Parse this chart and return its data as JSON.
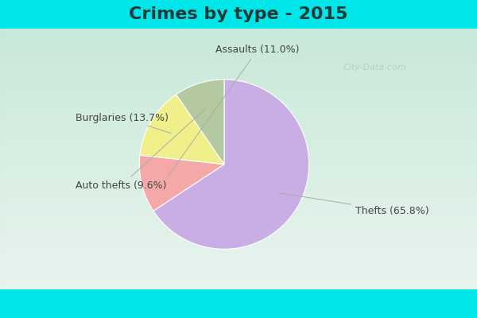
{
  "title": "Crimes by type - 2015",
  "slices": [
    {
      "label": "Thefts",
      "pct": 65.8,
      "color": "#c9aee5"
    },
    {
      "label": "Assaults",
      "pct": 11.0,
      "color": "#f4a9a8"
    },
    {
      "label": "Burglaries",
      "pct": 13.7,
      "color": "#f0f08a"
    },
    {
      "label": "Auto thefts",
      "pct": 9.6,
      "color": "#b5c9a0"
    }
  ],
  "bg_cyan": "#00e5e8",
  "bg_grad_top": "#c8e8d8",
  "bg_grad_bottom": "#e8f4ee",
  "title_fontsize": 16,
  "label_fontsize": 9,
  "watermark": "City-Data.com",
  "cyan_bar_height": 0.09
}
